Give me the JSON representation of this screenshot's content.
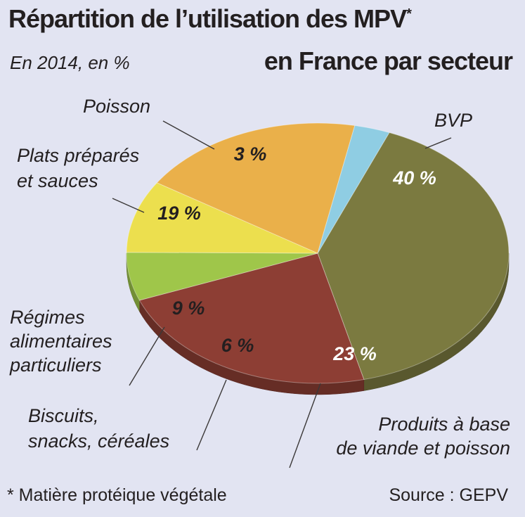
{
  "header": {
    "title": "Répartition de l’utilisation des MPV",
    "title_asterisk": "*",
    "title_line2": "en France par secteur",
    "unit_note": "En 2014, en %"
  },
  "footer": {
    "footnote": "* Matière protéique végétale",
    "source": "Source : GEPV"
  },
  "chart_data": {
    "type": "pie",
    "title": "Répartition de l’utilisation des MPV* en France par secteur",
    "subtitle": "En 2014, en %",
    "slices": [
      {
        "label": "BVP",
        "value": 40,
        "display": "40 %",
        "color": "#7b7a40",
        "text_color": "#ffffff"
      },
      {
        "label": "Produits à base de viande et poisson",
        "value": 23,
        "display": "23 %",
        "color": "#8d3e34",
        "text_color": "#ffffff"
      },
      {
        "label": "Biscuits, snacks, céréales",
        "value": 6,
        "display": "6 %",
        "color": "#9fc64a",
        "text_color": "#231f20"
      },
      {
        "label": "Régimes alimentaires particuliers",
        "value": 9,
        "display": "9 %",
        "color": "#ecdf4e",
        "text_color": "#231f20"
      },
      {
        "label": "Plats préparés et sauces",
        "value": 19,
        "display": "19 %",
        "color": "#eab04a",
        "text_color": "#231f20"
      },
      {
        "label": "Poisson",
        "value": 3,
        "display": "3 %",
        "color": "#8fcde3",
        "text_color": "#231f20"
      }
    ]
  }
}
